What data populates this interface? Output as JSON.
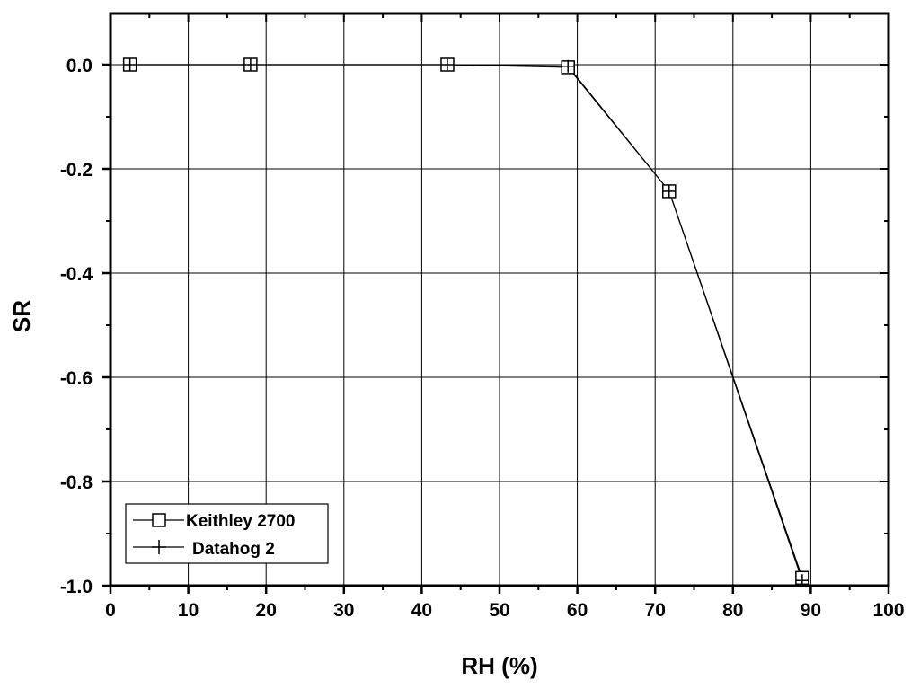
{
  "chart_data": {
    "type": "line",
    "title": "",
    "xlabel": "RH (%)",
    "ylabel": "SR",
    "xlim": [
      0,
      100
    ],
    "ylim": [
      -1.0,
      0.1
    ],
    "xticks": [
      0,
      10,
      20,
      30,
      40,
      50,
      60,
      70,
      80,
      90,
      100
    ],
    "yticks": [
      -1.0,
      -0.8,
      -0.6,
      -0.4,
      -0.2,
      0.0
    ],
    "xtick_labels": [
      "0",
      "10",
      "20",
      "30",
      "40",
      "50",
      "60",
      "70",
      "80",
      "90",
      "100"
    ],
    "ytick_labels": [
      "-1.0",
      "-0.8",
      "-0.6",
      "-0.4",
      "-0.2",
      "0.0"
    ],
    "grid": true,
    "legend_position": "bottom-left",
    "series": [
      {
        "name": "Keithley 2700",
        "marker": "square",
        "x": [
          2.5,
          18,
          43.3,
          58.8,
          71.8,
          88.9
        ],
        "y": [
          0.0,
          0.0,
          0.0,
          -0.005,
          -0.243,
          -0.985
        ]
      },
      {
        "name": "Datahog 2",
        "marker": "plus",
        "x": [
          2.5,
          18,
          43.3,
          58.8,
          71.8,
          88.9
        ],
        "y": [
          0.0,
          0.0,
          0.0,
          -0.003,
          -0.243,
          -0.99
        ]
      }
    ]
  }
}
